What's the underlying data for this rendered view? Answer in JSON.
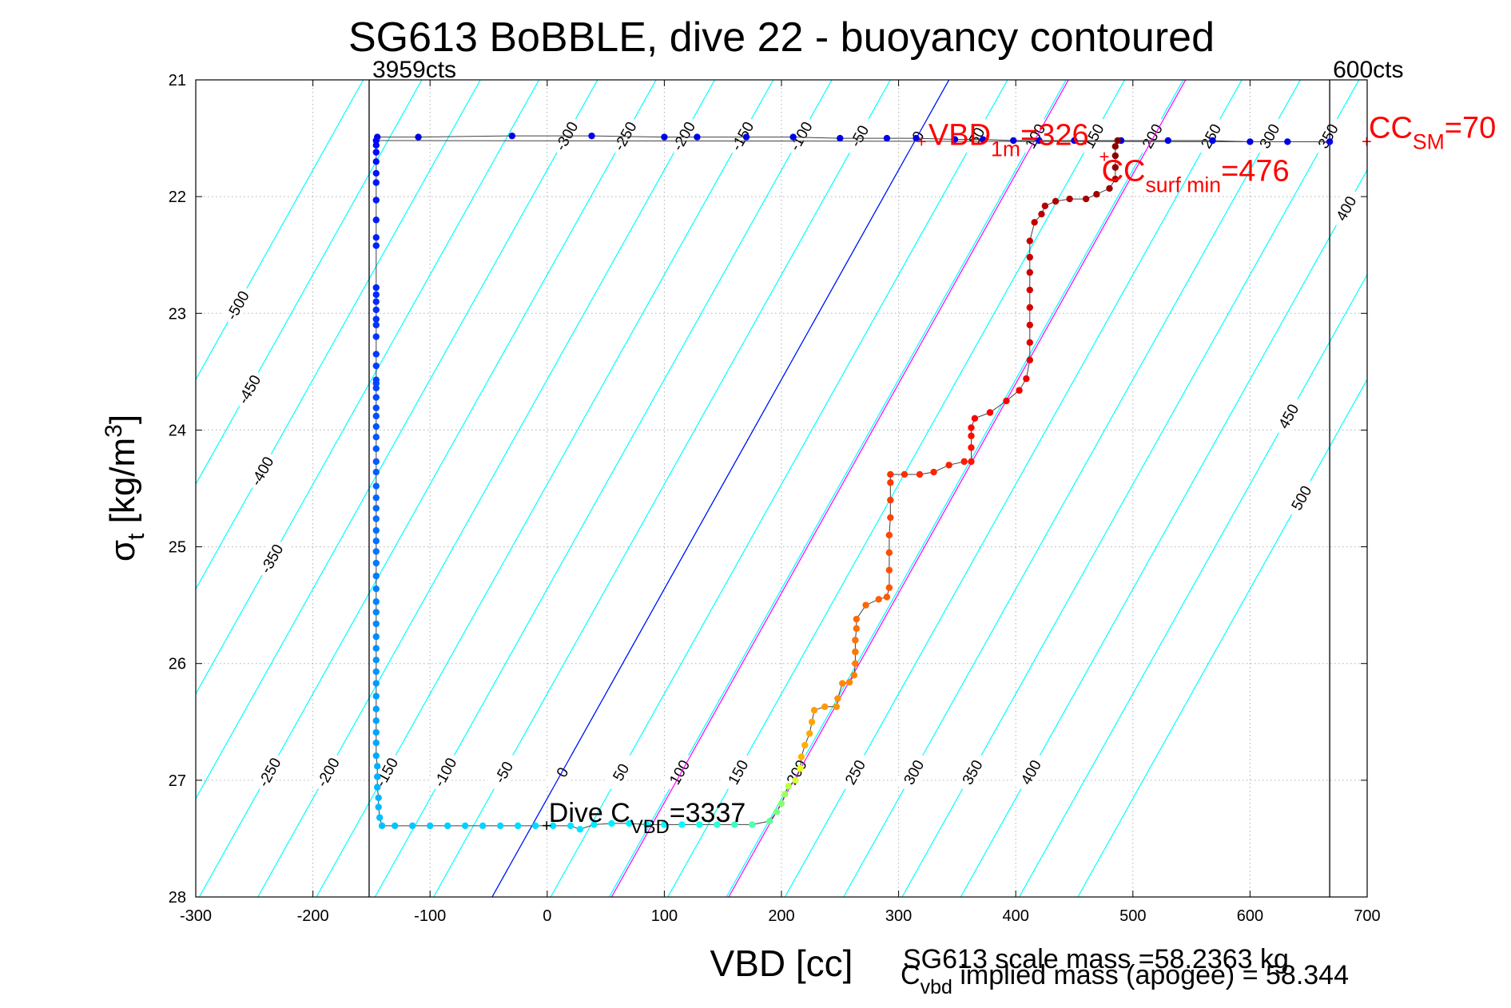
{
  "chart_data": {
    "type": "scatter",
    "title": "SG613 BoBBLE, dive 22 - buoyancy contoured",
    "xlabel": "VBD [cc]",
    "ylabel": {
      "base": "σ",
      "sub": "t",
      "text": " [kg/m",
      "sup": "3",
      "close": "]"
    },
    "xlim": [
      -300,
      700
    ],
    "ylim": [
      21,
      28
    ],
    "y_reversed": true,
    "x_ticks": [
      "-300",
      "-200",
      "-100",
      "0",
      "100",
      "200",
      "300",
      "400",
      "500",
      "600",
      "700"
    ],
    "y_ticks": [
      "21",
      "22",
      "23",
      "24",
      "25",
      "26",
      "27",
      "28"
    ],
    "grid": true,
    "vertical_markers": [
      {
        "x": -152,
        "label": "3959cts"
      },
      {
        "x": 668,
        "label": "600cts"
      }
    ],
    "annotations": {
      "vbd_1m": {
        "base": "VBD",
        "sub": "1m",
        "rest": "=326",
        "x": 320,
        "y": 21.53,
        "color": "#ff0000"
      },
      "cc_surf_min": {
        "base": "CC",
        "sub": "surf min",
        "rest": "=476",
        "x": 476,
        "y": 21.66,
        "color": "#ff0000"
      },
      "cc_sm": {
        "base": "CC",
        "sub": "SM",
        "rest": "=70",
        "x": 700,
        "y": 21.53,
        "color": "#ff0000"
      },
      "dive_cvbd": {
        "base": "Dive C",
        "sub": "VBD",
        "rest": "=3337",
        "x": 0,
        "y": 27.39,
        "color": "#000000"
      }
    },
    "footer": {
      "scale_mass": "SG613 scale mass =58.2363 kg",
      "implied_mass": {
        "base": "C",
        "sub": "vbd",
        "rest": " implied mass (apogee) = 58.344"
      }
    },
    "buoyancy_contours": {
      "color": "#00ffff",
      "levels": [
        -500,
        -450,
        -400,
        -350,
        -300,
        -250,
        -200,
        -150,
        -100,
        -50,
        0,
        50,
        100,
        150,
        200,
        250,
        300,
        350,
        400,
        450,
        500
      ],
      "labels_top": [
        "-300",
        "-250",
        "-200",
        "-150",
        "-100",
        "-50",
        "0",
        "50",
        "100",
        "150",
        "200",
        "250",
        "300",
        "350",
        "400"
      ],
      "labels_left": [
        "-500",
        "-450",
        "-400",
        "-350",
        "-250",
        "-200"
      ],
      "labels_bottom": [
        "-150",
        "-100",
        "-50",
        "0",
        "50",
        "100",
        "150",
        "200",
        "250",
        "300",
        "350",
        "400"
      ],
      "labels_right": [
        "400",
        "450",
        "500"
      ]
    },
    "reference_lines": [
      {
        "name": "neutral",
        "color": "#0000ff",
        "points": [
          [
            -47,
            28
          ],
          [
            343,
            21
          ]
        ]
      },
      {
        "name": "magenta-1",
        "color": "#ff00ff",
        "points": [
          [
            55,
            28
          ],
          [
            445,
            21
          ]
        ]
      },
      {
        "name": "magenta-2",
        "color": "#ff00ff",
        "points": [
          [
            155,
            28
          ],
          [
            545,
            21
          ]
        ]
      }
    ],
    "series": [
      {
        "color_scale": "jet",
        "points": [
          [
            -145,
            21.49
          ],
          [
            -110,
            21.49
          ],
          [
            -30,
            21.48
          ],
          [
            38,
            21.48
          ],
          [
            100,
            21.49
          ],
          [
            128,
            21.49
          ],
          [
            170,
            21.49
          ],
          [
            210,
            21.49
          ],
          [
            250,
            21.5
          ],
          [
            290,
            21.5
          ],
          [
            315,
            21.5
          ],
          [
            348,
            21.51
          ],
          [
            372,
            21.51
          ],
          [
            398,
            21.52
          ],
          [
            420,
            21.52
          ],
          [
            450,
            21.52
          ],
          [
            490,
            21.52
          ],
          [
            530,
            21.52
          ],
          [
            568,
            21.52
          ],
          [
            600,
            21.53
          ],
          [
            632,
            21.53
          ],
          [
            668,
            21.53
          ],
          [
            -146,
            21.52
          ],
          [
            -146,
            21.56
          ],
          [
            -146,
            21.62
          ],
          [
            -146,
            21.7
          ],
          [
            -146,
            21.8
          ],
          [
            -146,
            21.88
          ],
          [
            -146,
            22.03
          ],
          [
            -146,
            22.2
          ],
          [
            -146,
            22.35
          ],
          [
            -146,
            22.42
          ],
          [
            -146,
            22.78
          ],
          [
            -146,
            22.84
          ],
          [
            -146,
            22.9
          ],
          [
            -146,
            22.97
          ],
          [
            -146,
            23.05
          ],
          [
            -146,
            23.1
          ],
          [
            -146,
            23.2
          ],
          [
            -146,
            23.35
          ],
          [
            -146,
            23.45
          ],
          [
            -146,
            23.57
          ],
          [
            -146,
            23.6
          ],
          [
            -146,
            23.64
          ],
          [
            -146,
            23.72
          ],
          [
            -146,
            23.81
          ],
          [
            -146,
            23.88
          ],
          [
            -146,
            23.97
          ],
          [
            -146,
            24.06
          ],
          [
            -146,
            24.16
          ],
          [
            -146,
            24.27
          ],
          [
            -146,
            24.36
          ],
          [
            -146,
            24.48
          ],
          [
            -146,
            24.58
          ],
          [
            -146,
            24.67
          ],
          [
            -146,
            24.76
          ],
          [
            -146,
            24.86
          ],
          [
            -146,
            24.95
          ],
          [
            -146,
            25.04
          ],
          [
            -146,
            25.14
          ],
          [
            -146,
            25.25
          ],
          [
            -146,
            25.36
          ],
          [
            -146,
            25.47
          ],
          [
            -146,
            25.56
          ],
          [
            -146,
            25.66
          ],
          [
            -146,
            25.77
          ],
          [
            -146,
            25.87
          ],
          [
            -146,
            25.97
          ],
          [
            -146,
            26.07
          ],
          [
            -146,
            26.17
          ],
          [
            -146,
            26.28
          ],
          [
            -146,
            26.39
          ],
          [
            -146,
            26.49
          ],
          [
            -146,
            26.59
          ],
          [
            -146,
            26.68
          ],
          [
            -146,
            26.79
          ],
          [
            -145,
            26.88
          ],
          [
            -145,
            26.97
          ],
          [
            -145,
            27.06
          ],
          [
            -144,
            27.15
          ],
          [
            -144,
            27.23
          ],
          [
            -143,
            27.32
          ],
          [
            -141,
            27.39
          ],
          [
            -130,
            27.39
          ],
          [
            -115,
            27.39
          ],
          [
            -100,
            27.39
          ],
          [
            -85,
            27.39
          ],
          [
            -70,
            27.39
          ],
          [
            -55,
            27.39
          ],
          [
            -40,
            27.39
          ],
          [
            -25,
            27.39
          ],
          [
            -10,
            27.39
          ],
          [
            5,
            27.39
          ],
          [
            20,
            27.39
          ],
          [
            28,
            27.42
          ],
          [
            40,
            27.38
          ],
          [
            55,
            27.37
          ],
          [
            70,
            27.37
          ],
          [
            85,
            27.38
          ],
          [
            100,
            27.38
          ],
          [
            115,
            27.38
          ],
          [
            130,
            27.38
          ],
          [
            145,
            27.38
          ],
          [
            160,
            27.38
          ],
          [
            175,
            27.38
          ],
          [
            190,
            27.35
          ],
          [
            196,
            27.27
          ],
          [
            200,
            27.2
          ],
          [
            203,
            27.12
          ],
          [
            206,
            27.05
          ],
          [
            212,
            27.0
          ],
          [
            216,
            26.9
          ],
          [
            217,
            26.8
          ],
          [
            220,
            26.7
          ],
          [
            224,
            26.6
          ],
          [
            226,
            26.5
          ],
          [
            228,
            26.4
          ],
          [
            237,
            26.37
          ],
          [
            247,
            26.37
          ],
          [
            248,
            26.3
          ],
          [
            252,
            26.17
          ],
          [
            258,
            26.16
          ],
          [
            262,
            26.1
          ],
          [
            263,
            26.0
          ],
          [
            263,
            25.9
          ],
          [
            263,
            25.8
          ],
          [
            264,
            25.7
          ],
          [
            264,
            25.62
          ],
          [
            272,
            25.5
          ],
          [
            283,
            25.45
          ],
          [
            290,
            25.43
          ],
          [
            292,
            25.35
          ],
          [
            292,
            25.2
          ],
          [
            292,
            25.05
          ],
          [
            292,
            24.9
          ],
          [
            293,
            24.75
          ],
          [
            293,
            24.6
          ],
          [
            293,
            24.45
          ],
          [
            293,
            24.38
          ],
          [
            305,
            24.38
          ],
          [
            318,
            24.38
          ],
          [
            330,
            24.36
          ],
          [
            343,
            24.3
          ],
          [
            356,
            24.27
          ],
          [
            362,
            24.27
          ],
          [
            362,
            24.15
          ],
          [
            362,
            24.05
          ],
          [
            362,
            23.98
          ],
          [
            365,
            23.9
          ],
          [
            378,
            23.85
          ],
          [
            392,
            23.75
          ],
          [
            403,
            23.66
          ],
          [
            409,
            23.56
          ],
          [
            412,
            23.4
          ],
          [
            412,
            23.25
          ],
          [
            412,
            23.1
          ],
          [
            412,
            22.95
          ],
          [
            412,
            22.8
          ],
          [
            412,
            22.65
          ],
          [
            412,
            22.52
          ],
          [
            412,
            22.38
          ],
          [
            416,
            22.22
          ],
          [
            422,
            22.15
          ],
          [
            425,
            22.08
          ],
          [
            434,
            22.04
          ],
          [
            446,
            22.02
          ],
          [
            460,
            22.02
          ],
          [
            469,
            21.98
          ],
          [
            480,
            21.93
          ],
          [
            485,
            21.85
          ],
          [
            485,
            21.75
          ],
          [
            485,
            21.65
          ],
          [
            485,
            21.57
          ],
          [
            487,
            21.52
          ]
        ]
      }
    ]
  }
}
